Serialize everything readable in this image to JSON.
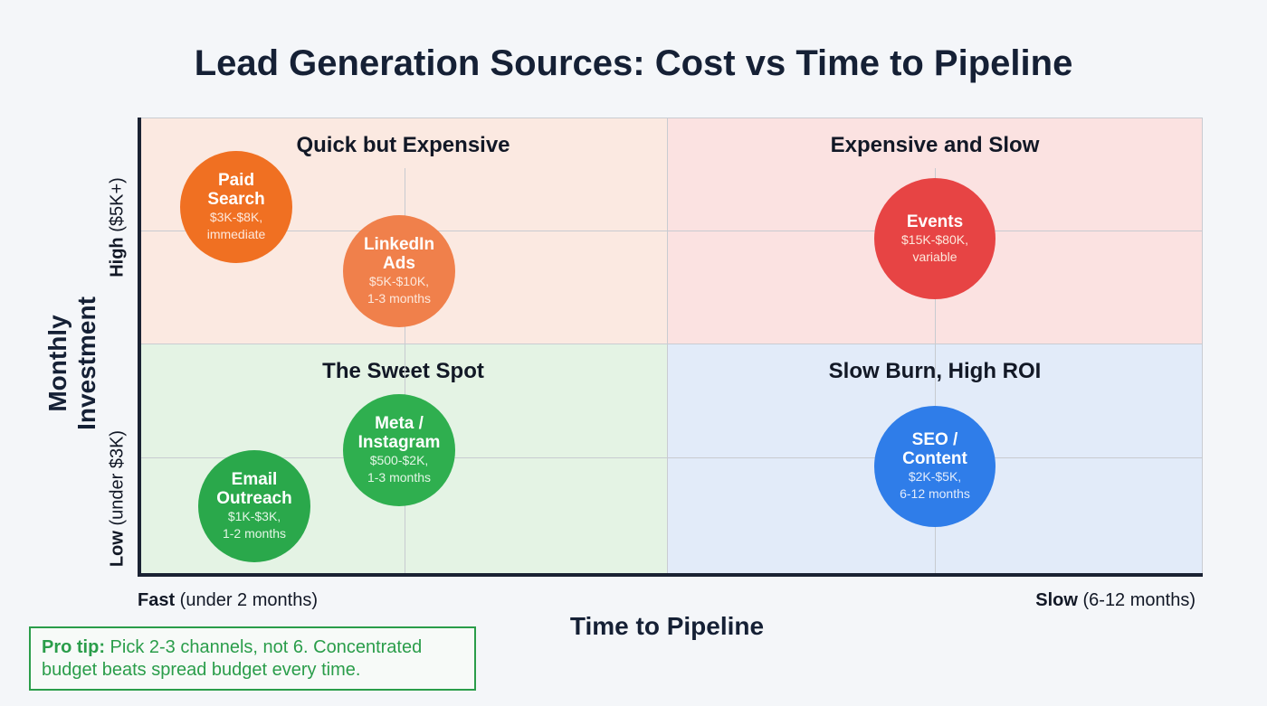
{
  "title": "Lead Generation Sources: Cost vs Time to Pipeline",
  "quadrants": [
    {
      "label": "Quick but Expensive",
      "color": "#fbe9e1"
    },
    {
      "label": "Expensive and Slow",
      "color": "#fbe2e1"
    },
    {
      "label": "The Sweet Spot",
      "color": "#e4f3e4"
    },
    {
      "label": "Slow Burn, High ROI",
      "color": "#e2ebf9"
    }
  ],
  "bubbles": [
    {
      "name_1": "Paid",
      "name_2": "Search",
      "cost": "$3K-$8K,",
      "time": "immediate",
      "color": "#f07022"
    },
    {
      "name_1": "LinkedIn",
      "name_2": "Ads",
      "cost": "$5K-$10K,",
      "time": "1-3 months",
      "color": "#f0804b"
    },
    {
      "name_1": "Events",
      "cost": "$15K-$80K,",
      "time": "variable",
      "color": "#e74444"
    },
    {
      "name_1": "Meta /",
      "name_2": "Instagram",
      "cost": "$500-$2K,",
      "time": "1-3 months",
      "color": "#2faf4f"
    },
    {
      "name_1": "Email",
      "name_2": "Outreach",
      "cost": "$1K-$3K,",
      "time": "1-2 months",
      "color": "#2aa84b"
    },
    {
      "name_1": "SEO /",
      "name_2": "Content",
      "cost": "$2K-$5K,",
      "time": "6-12 months",
      "color": "#2f7de9"
    }
  ],
  "y_axis": {
    "title": "Monthly Investment",
    "high_bold": "High",
    "high_rest": " ($5K+)",
    "low_bold": "Low",
    "low_rest": " (under $3K)"
  },
  "x_axis": {
    "title": "Time to Pipeline",
    "fast_bold": "Fast",
    "fast_rest": " (under 2 months)",
    "slow_bold": "Slow",
    "slow_rest": " (6-12 months)"
  },
  "tip": {
    "bold": "Pro tip:",
    "text": " Pick 2-3 channels, not 6. Concentrated budget beats spread budget every time.",
    "color": "#2a9d4a"
  }
}
